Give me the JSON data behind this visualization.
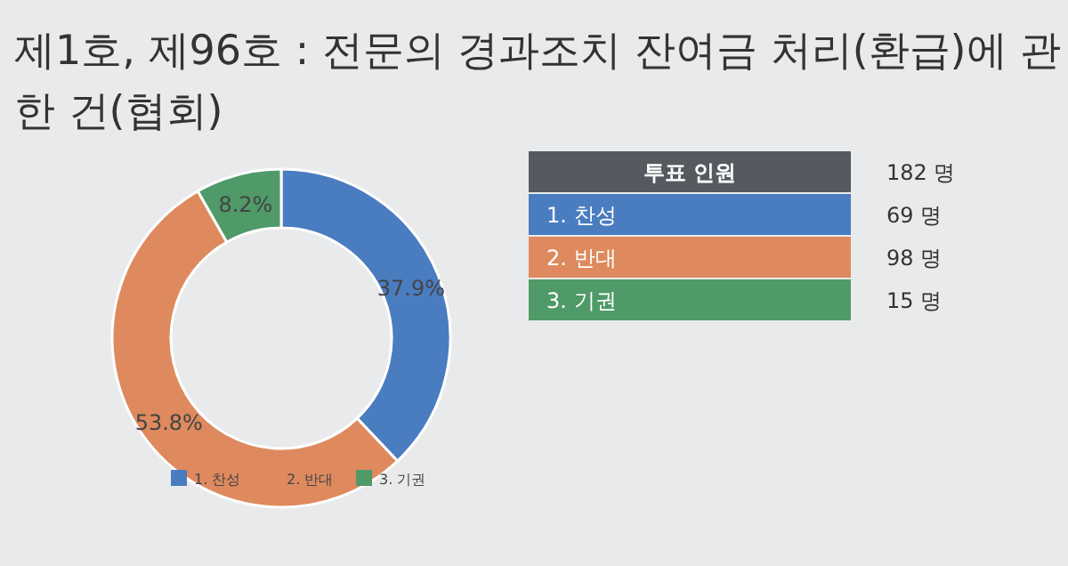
{
  "chart_data": {
    "type": "donut",
    "title": "제1호, 제96호 : 전문의 경과조치 잔여금 처리(환급)에 관한 건(협회)",
    "categories": [
      "1. 찬성",
      "2. 반대",
      "3. 기권"
    ],
    "values": [
      37.9,
      53.8,
      8.2
    ],
    "colors": [
      "#4a7cc0",
      "#de8a5e",
      "#4f9a68"
    ],
    "value_labels": [
      "37.9%",
      "53.8%",
      "8.2%"
    ],
    "legend": "bottom",
    "annotations": [
      "투표 인원",
      "182 명",
      "69 명",
      "98 명",
      "15 명"
    ]
  }
}
